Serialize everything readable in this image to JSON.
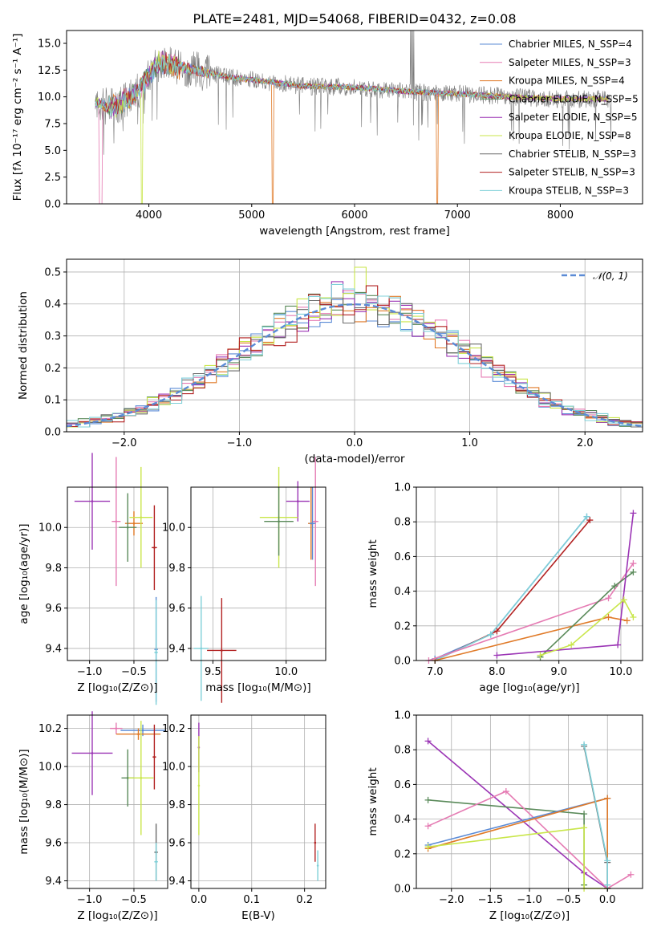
{
  "figure": {
    "title": "PLATE=2481, MJD=54068, FIBERID=0432, z=0.08"
  },
  "colors": {
    "Chabrier MILES": "#5b8bd6",
    "Salpeter MILES": "#e57bb3",
    "Kroupa MILES": "#e07a28",
    "Chabrier ELODIE": "#5a8a5a",
    "Salpeter ELODIE": "#9b35b5",
    "Kroupa ELODIE": "#c9e64a",
    "Chabrier STELIB": "#6b6b6b",
    "Salpeter STELIB": "#b22222",
    "Kroupa STELIB": "#7fd0d8",
    "normal": "#5b8bd6"
  },
  "chart_data": [
    {
      "id": "spectrum",
      "type": "line",
      "xlabel": "wavelength [Angstrom, rest frame]",
      "ylabel": "Flux [fλ 10⁻¹⁷ erg cm⁻² s⁻¹ A⁻¹]",
      "xlim": [
        3200,
        8800
      ],
      "ylim": [
        0,
        16.2
      ],
      "xticks": [
        4000,
        5000,
        6000,
        7000,
        8000
      ],
      "yticks": [
        0.0,
        2.5,
        5.0,
        7.5,
        10.0,
        12.5,
        15.0
      ],
      "grid": false,
      "legend": "top-right",
      "series": [
        {
          "name": "Chabrier MILES, N_SSP=4"
        },
        {
          "name": "Salpeter MILES, N_SSP=3"
        },
        {
          "name": "Kroupa MILES, N_SSP=4"
        },
        {
          "name": "Chabrier ELODIE, N_SSP=5"
        },
        {
          "name": "Salpeter ELODIE, N_SSP=5"
        },
        {
          "name": "Kroupa ELODIE, N_SSP=8"
        },
        {
          "name": "Chabrier STELIB, N_SSP=3"
        },
        {
          "name": "Salpeter STELIB, N_SSP=3"
        },
        {
          "name": "Kroupa STELIB, N_SSP=3"
        }
      ],
      "continuum": {
        "x": [
          3500,
          3600,
          3700,
          3800,
          3900,
          4000,
          4100,
          4300,
          4500,
          4800,
          5000,
          5500,
          6000,
          6500,
          7000,
          7500,
          8000,
          8500
        ],
        "y": [
          9.5,
          9.0,
          9.3,
          9.8,
          10.5,
          12.0,
          13.2,
          12.8,
          12.4,
          11.8,
          11.6,
          11.0,
          10.9,
          10.5,
          10.3,
          10.0,
          9.8,
          9.8
        ]
      }
    },
    {
      "id": "residuals",
      "type": "histogram",
      "xlabel": "(data-model)/error",
      "ylabel": "Normed distribution",
      "xlim": [
        -2.5,
        2.5
      ],
      "ylim": [
        0,
        0.54
      ],
      "xticks": [
        -2,
        -1,
        0,
        1,
        2
      ],
      "yticks": [
        0.0,
        0.1,
        0.2,
        0.3,
        0.4,
        0.5
      ],
      "grid": true,
      "legend": "top-right",
      "normal_label": "𝒩(0, 1)",
      "bin_width": 0.1,
      "bins_from": -2.5
    },
    {
      "id": "age-vs-Z",
      "type": "scatter",
      "xlabel": "Z [log₁₀(Z/Z⊙)]",
      "ylabel": "age  [log₁₀(age/yr)]",
      "xlim": [
        -1.25,
        -0.12
      ],
      "ylim": [
        9.34,
        10.2
      ],
      "xticks": [
        -1.0,
        -0.5
      ],
      "yticks": [
        9.4,
        9.6,
        9.8,
        10.0
      ],
      "grid": true,
      "points": [
        {
          "model": "Salpeter ELODIE",
          "x": -0.97,
          "y": 10.13,
          "xerr": 0.2,
          "yerr": 0.24
        },
        {
          "model": "Salpeter MILES",
          "x": -0.7,
          "y": 10.03,
          "xerr": 0.05,
          "yerr": 0.32
        },
        {
          "model": "Kroupa MILES",
          "x": -0.5,
          "y": 10.02,
          "xerr": 0.1,
          "yerr": 0.06
        },
        {
          "model": "Kroupa ELODIE",
          "x": -0.42,
          "y": 10.05,
          "xerr": 0.13,
          "yerr": 0.25
        },
        {
          "model": "Chabrier ELODIE",
          "x": -0.57,
          "y": 10.0,
          "xerr": 0.1,
          "yerr": 0.17
        },
        {
          "model": "Salpeter STELIB",
          "x": -0.27,
          "y": 9.9,
          "xerr": 0.03,
          "yerr": 0.21
        },
        {
          "model": "Chabrier MILES",
          "x": -0.25,
          "y": 9.395,
          "xerr": 0.02,
          "yerr": 0.26
        },
        {
          "model": "Kroupa STELIB",
          "x": -0.25,
          "y": 9.38,
          "xerr": 0.02,
          "yerr": 0.26
        }
      ]
    },
    {
      "id": "age-vs-mass",
      "type": "scatter",
      "xlabel": "mass [log₁₀(M/M⊙)]",
      "ylabel": "",
      "xlim": [
        9.35,
        10.27
      ],
      "ylim": [
        9.34,
        10.2
      ],
      "xticks": [
        9.5,
        10.0
      ],
      "yticks": [
        9.4,
        9.6,
        9.8,
        10.0
      ],
      "grid": true,
      "points": [
        {
          "model": "Salpeter ELODIE",
          "x": 10.08,
          "y": 10.13,
          "xerr": 0.08,
          "yerr": 0.1
        },
        {
          "model": "Kroupa ELODIE",
          "x": 9.95,
          "y": 10.05,
          "xerr": 0.13,
          "yerr": 0.25
        },
        {
          "model": "Chabrier ELODIE",
          "x": 9.95,
          "y": 10.03,
          "xerr": 0.1,
          "yerr": 0.17
        },
        {
          "model": "Salpeter MILES",
          "x": 10.2,
          "y": 10.03,
          "xerr": 0.02,
          "yerr": 0.32
        },
        {
          "model": "Kroupa MILES",
          "x": 10.17,
          "y": 10.02,
          "xerr": 0.02,
          "yerr": 0.18
        },
        {
          "model": "Chabrier MILES",
          "x": 10.18,
          "y": 10.02,
          "xerr": 0.02,
          "yerr": 0.18
        },
        {
          "model": "Salpeter STELIB",
          "x": 9.56,
          "y": 9.39,
          "xerr": 0.1,
          "yerr": 0.26
        },
        {
          "model": "Kroupa STELIB",
          "x": 9.42,
          "y": 9.4,
          "xerr": 0.05,
          "yerr": 0.26
        }
      ]
    },
    {
      "id": "massweight-vs-age",
      "type": "line",
      "xlabel": "age  [log₁₀(age/yr)]",
      "ylabel": "mass weight",
      "xlim": [
        6.7,
        10.35
      ],
      "ylim": [
        0,
        1
      ],
      "xticks": [
        7,
        8,
        9,
        10
      ],
      "yticks": [
        0.0,
        0.2,
        0.4,
        0.6,
        0.8,
        1.0
      ],
      "grid": true,
      "series": [
        {
          "model": "Chabrier MILES",
          "x": [
            7.0,
            7.9,
            9.45
          ],
          "y": [
            0.01,
            0.15,
            0.83
          ]
        },
        {
          "model": "Salpeter STELIB",
          "x": [
            7.0,
            8.0,
            9.5
          ],
          "y": [
            0.0,
            0.17,
            0.81
          ]
        },
        {
          "model": "Kroupa STELIB",
          "x": [
            7.0,
            7.9,
            9.45
          ],
          "y": [
            0.0,
            0.15,
            0.83
          ]
        },
        {
          "model": "Kroupa MILES",
          "x": [
            7.0,
            9.8,
            10.1
          ],
          "y": [
            0.0,
            0.25,
            0.23
          ]
        },
        {
          "model": "Salpeter MILES",
          "x": [
            6.9,
            9.8,
            10.2
          ],
          "y": [
            0.0,
            0.36,
            0.56
          ]
        },
        {
          "model": "Chabrier ELODIE",
          "x": [
            8.7,
            9.9,
            10.2
          ],
          "y": [
            0.02,
            0.43,
            0.51
          ]
        },
        {
          "model": "Salpeter ELODIE",
          "x": [
            8.0,
            9.95,
            10.2
          ],
          "y": [
            0.03,
            0.09,
            0.85
          ]
        },
        {
          "model": "Kroupa ELODIE",
          "x": [
            8.7,
            9.2,
            10.05,
            10.2
          ],
          "y": [
            0.03,
            0.09,
            0.35,
            0.25
          ]
        }
      ]
    },
    {
      "id": "mass-vs-Z",
      "type": "scatter",
      "xlabel": "Z [log₁₀(Z/Z⊙)]",
      "ylabel": "mass [log₁₀(M/M⊙)]",
      "xlim": [
        -1.25,
        -0.12
      ],
      "ylim": [
        9.36,
        10.27
      ],
      "xticks": [
        -1.0,
        -0.5
      ],
      "yticks": [
        9.4,
        9.6,
        9.8,
        10.0,
        10.2
      ],
      "grid": true,
      "points": [
        {
          "model": "Salpeter MILES",
          "x": -0.7,
          "y": 10.2,
          "xerr": 0.07,
          "yerr": 0.03
        },
        {
          "model": "Chabrier MILES",
          "x": -0.4,
          "y": 10.19,
          "xerr": 0.25,
          "yerr": 0.03
        },
        {
          "model": "Kroupa MILES",
          "x": -0.45,
          "y": 10.17,
          "xerr": 0.25,
          "yerr": 0.03
        },
        {
          "model": "Salpeter ELODIE",
          "x": -0.97,
          "y": 10.07,
          "xerr": 0.23,
          "yerr": 0.22
        },
        {
          "model": "Chabrier ELODIE",
          "x": -0.57,
          "y": 9.94,
          "xerr": 0.07,
          "yerr": 0.15
        },
        {
          "model": "Kroupa ELODIE",
          "x": -0.42,
          "y": 9.94,
          "xerr": 0.14,
          "yerr": 0.3
        },
        {
          "model": "Salpeter STELIB",
          "x": -0.27,
          "y": 10.05,
          "xerr": 0.02,
          "yerr": 0.17
        },
        {
          "model": "Chabrier STELIB",
          "x": -0.25,
          "y": 9.55,
          "xerr": 0.02,
          "yerr": 0.15
        },
        {
          "model": "Kroupa STELIB",
          "x": -0.25,
          "y": 9.5,
          "xerr": 0.02,
          "yerr": 0.1
        }
      ]
    },
    {
      "id": "mass-vs-EBV",
      "type": "scatter",
      "xlabel": "E(B-V)",
      "ylabel": "",
      "xlim": [
        -0.015,
        0.24
      ],
      "ylim": [
        9.36,
        10.27
      ],
      "xticks": [
        0.0,
        0.1,
        0.2
      ],
      "yticks": [
        9.4,
        9.6,
        9.8,
        10.0,
        10.2
      ],
      "grid": true,
      "points": [
        {
          "model": "Salpeter ELODIE",
          "x": 0.0,
          "y": 10.1,
          "xerr": 0,
          "yerr": 0.13
        },
        {
          "model": "Kroupa ELODIE",
          "x": 0.0,
          "y": 9.9,
          "xerr": 0,
          "yerr": 0.26
        },
        {
          "model": "Salpeter STELIB",
          "x": 0.22,
          "y": 9.6,
          "xerr": 0,
          "yerr": 0.1
        },
        {
          "model": "Kroupa STELIB",
          "x": 0.225,
          "y": 9.48,
          "xerr": 0,
          "yerr": 0.08
        }
      ]
    },
    {
      "id": "massweight-vs-Z",
      "type": "line",
      "xlabel": "Z [log₁₀(Z/Z⊙)]",
      "ylabel": "mass weight",
      "xlim": [
        -2.45,
        0.45
      ],
      "ylim": [
        0,
        1
      ],
      "xticks": [
        -2.0,
        -1.5,
        -1.0,
        -0.5,
        0.0
      ],
      "yticks": [
        0.0,
        0.2,
        0.4,
        0.6,
        0.8,
        1.0
      ],
      "grid": true,
      "series": [
        {
          "model": "Salpeter ELODIE",
          "x": [
            -2.3,
            -0.3,
            0.0
          ],
          "y": [
            0.85,
            0.09,
            0.0
          ]
        },
        {
          "model": "Chabrier ELODIE",
          "x": [
            -2.3,
            -0.3,
            -0.3
          ],
          "y": [
            0.51,
            0.43,
            0.02
          ]
        },
        {
          "model": "Salpeter MILES",
          "x": [
            -2.3,
            -1.3,
            0.0,
            0.3
          ],
          "y": [
            0.36,
            0.56,
            0.0,
            0.08
          ]
        },
        {
          "model": "Chabrier MILES",
          "x": [
            -2.3,
            0.0,
            0.0
          ],
          "y": [
            0.25,
            0.52,
            0.0
          ]
        },
        {
          "model": "Kroupa MILES",
          "x": [
            -2.3,
            0.0,
            0.0
          ],
          "y": [
            0.23,
            0.52,
            0.0
          ]
        },
        {
          "model": "Kroupa ELODIE",
          "x": [
            -2.3,
            -0.3,
            -0.3,
            0.0
          ],
          "y": [
            0.24,
            0.35,
            0.0,
            0.0
          ]
        },
        {
          "model": "Chabrier STELIB",
          "x": [
            -0.3,
            0.0,
            0.0
          ],
          "y": [
            0.82,
            0.15,
            0.0
          ]
        },
        {
          "model": "Kroupa STELIB",
          "x": [
            -0.3,
            0.0,
            0.0
          ],
          "y": [
            0.83,
            0.16,
            0.02
          ]
        }
      ]
    }
  ]
}
